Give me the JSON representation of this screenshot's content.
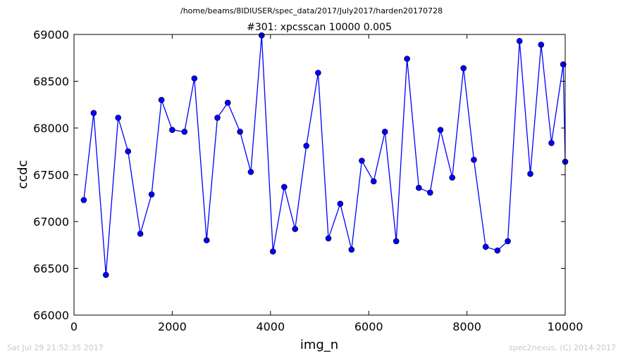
{
  "chart_data": {
    "type": "line",
    "suptitle": "/home/beams/8IDIUSER/spec_data/2017/July2017/harden20170728",
    "title": "#301: xpcsscan 10000 0.005",
    "xlabel": "img_n",
    "ylabel": "ccdc",
    "xlim": [
      0,
      10000
    ],
    "ylim": [
      66000,
      69000
    ],
    "xticks": [
      0,
      2000,
      4000,
      6000,
      8000,
      10000
    ],
    "yticks": [
      66000,
      66500,
      67000,
      67500,
      68000,
      68500,
      69000
    ],
    "grid": false,
    "line_color": "#0000ff",
    "marker_color": "#0000ff",
    "marker": "circle",
    "series": [
      {
        "x": [
          200,
          400,
          650,
          900,
          1100,
          1350,
          1580,
          1780,
          2000,
          2250,
          2450,
          2700,
          2920,
          3130,
          3380,
          3600,
          3820,
          4050,
          4280,
          4500,
          4730,
          4970,
          5180,
          5420,
          5650,
          5860,
          6100,
          6330,
          6560,
          6780,
          7020,
          7250,
          7460,
          7700,
          7930,
          8140,
          8380,
          8620,
          8830,
          9070,
          9290,
          9510,
          9720,
          9960,
          10000
        ],
        "y": [
          67230,
          68160,
          66430,
          68110,
          67750,
          66870,
          67290,
          68300,
          67980,
          67960,
          68530,
          66800,
          68110,
          68270,
          67960,
          67530,
          68990,
          66680,
          67370,
          66920,
          67810,
          68590,
          66820,
          67190,
          66700,
          67650,
          67430,
          67960,
          66790,
          68740,
          67360,
          67310,
          67980,
          67470,
          68640,
          67660,
          66730,
          66690,
          66790,
          68930,
          67510,
          68890,
          67840,
          68680,
          67640
        ]
      }
    ]
  },
  "footer": {
    "timestamp": "Sat Jul 29 21:52:35 2017",
    "credit": "spec2nexus, (C) 2014-2017"
  }
}
